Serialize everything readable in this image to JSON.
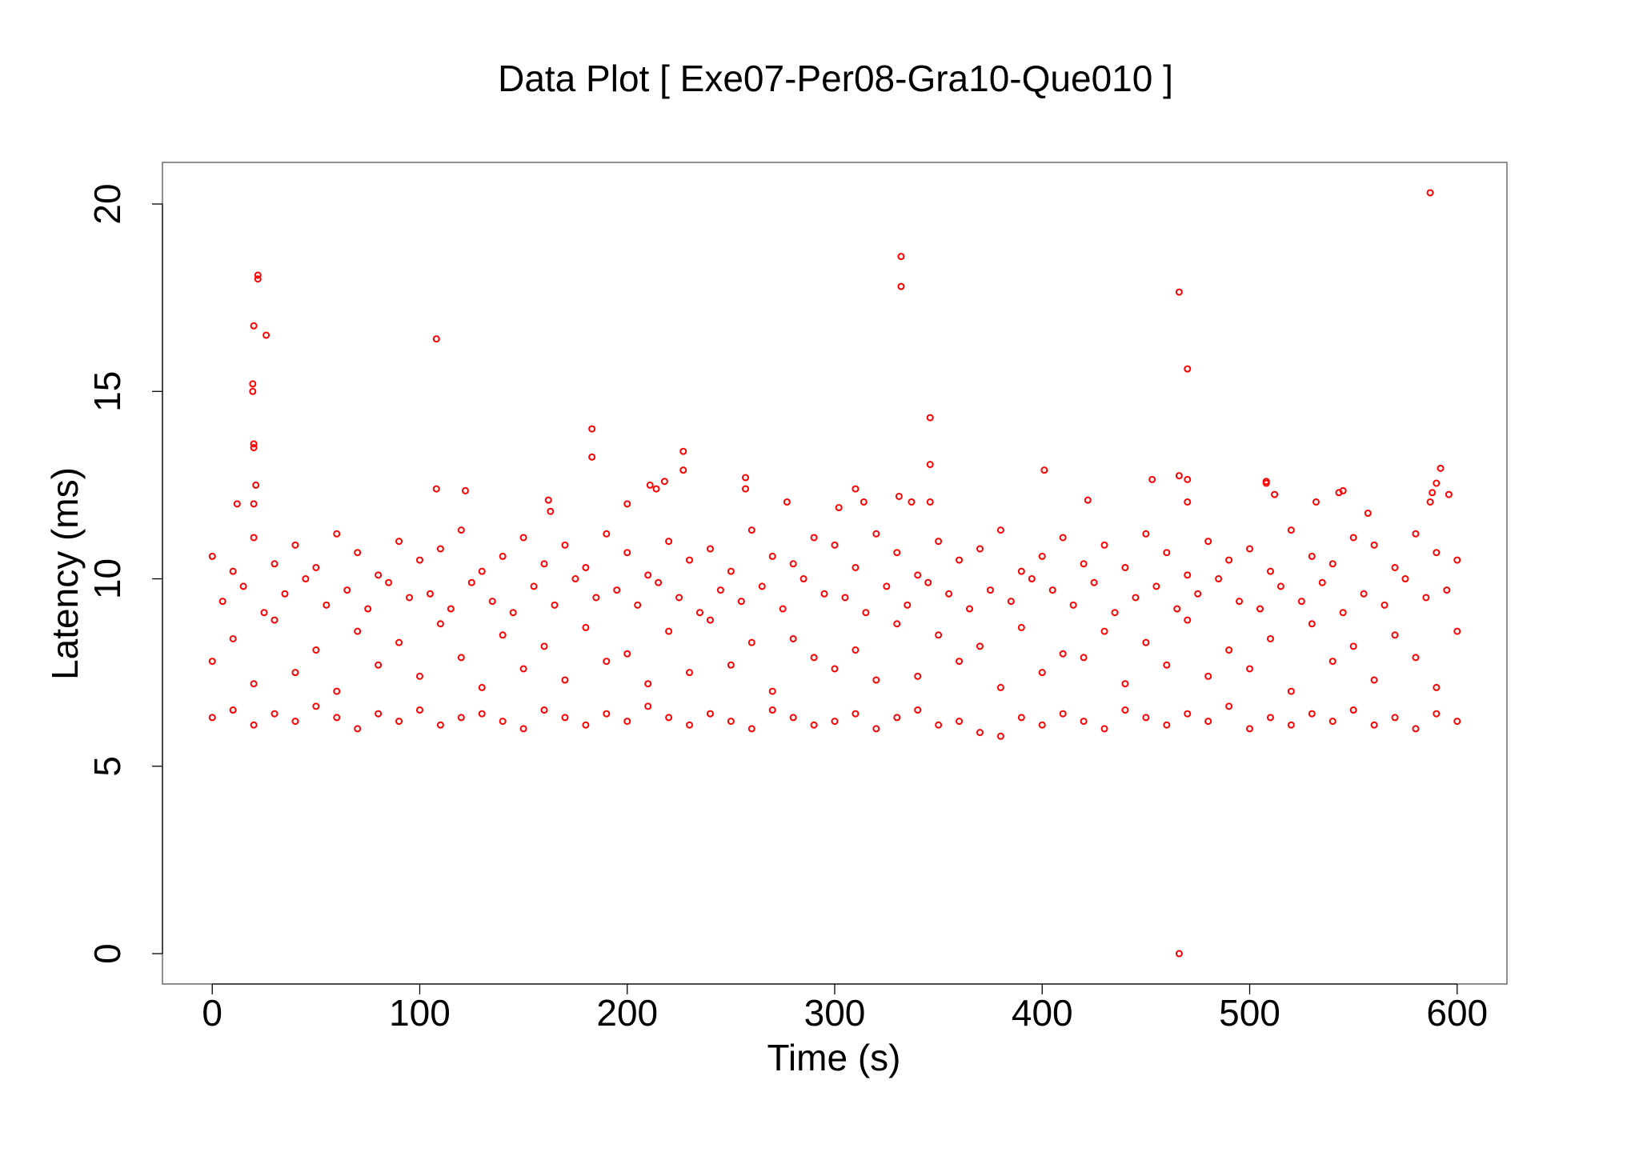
{
  "chart_data": {
    "type": "scatter",
    "title": "Data Plot [ Exe07-Per08-Gra10-Que010 ]",
    "x_label": "Time (s)",
    "y_label": "Latency (ms)",
    "color": "#ff0000",
    "xlim": [
      -24,
      624
    ],
    "ylim": [
      -0.81,
      21.11
    ],
    "xticks": [
      0,
      100,
      200,
      300,
      400,
      500,
      600
    ],
    "yticks": [
      0,
      5,
      10,
      15,
      20
    ],
    "x": [
      0,
      10,
      20,
      30,
      40,
      50,
      60,
      70,
      80,
      90,
      100,
      110,
      120,
      130,
      140,
      150,
      160,
      170,
      180,
      190,
      200,
      210,
      220,
      230,
      240,
      250,
      260,
      270,
      280,
      290,
      300,
      310,
      320,
      330,
      340,
      350,
      360,
      370,
      380,
      390,
      400,
      410,
      420,
      430,
      440,
      450,
      460,
      470,
      480,
      490,
      500,
      510,
      520,
      530,
      540,
      550,
      560,
      570,
      580,
      590,
      600,
      0,
      10,
      20,
      30,
      40,
      50,
      60,
      70,
      80,
      90,
      100,
      110,
      120,
      130,
      140,
      150,
      160,
      170,
      180,
      190,
      200,
      210,
      220,
      230,
      240,
      250,
      260,
      270,
      280,
      290,
      300,
      310,
      320,
      330,
      340,
      350,
      360,
      370,
      380,
      390,
      400,
      410,
      420,
      430,
      440,
      450,
      460,
      470,
      480,
      490,
      500,
      510,
      520,
      530,
      540,
      550,
      560,
      570,
      580,
      590,
      600,
      0,
      10,
      20,
      30,
      40,
      50,
      60,
      70,
      80,
      90,
      100,
      110,
      120,
      130,
      140,
      150,
      160,
      170,
      180,
      190,
      200,
      210,
      220,
      230,
      240,
      250,
      260,
      270,
      280,
      290,
      300,
      310,
      320,
      330,
      340,
      350,
      360,
      370,
      380,
      390,
      400,
      410,
      420,
      430,
      440,
      450,
      460,
      470,
      480,
      490,
      500,
      510,
      520,
      530,
      540,
      550,
      560,
      570,
      580,
      590,
      600,
      5,
      15,
      25,
      35,
      45,
      55,
      65,
      75,
      85,
      95,
      105,
      115,
      125,
      135,
      145,
      155,
      165,
      175,
      185,
      195,
      205,
      215,
      225,
      235,
      245,
      255,
      265,
      275,
      285,
      295,
      305,
      315,
      325,
      335,
      345,
      355,
      365,
      375,
      385,
      395,
      405,
      415,
      425,
      435,
      445,
      455,
      465,
      475,
      485,
      495,
      505,
      515,
      525,
      535,
      545,
      555,
      565,
      575,
      585,
      595,
      20,
      22,
      22,
      26,
      19.5,
      19.5,
      20,
      20,
      21,
      20,
      12,
      108,
      108,
      122,
      183,
      183,
      162,
      163,
      200,
      211,
      214,
      218,
      227,
      227,
      257,
      257,
      277,
      302,
      310,
      314,
      332,
      332,
      331,
      337,
      346,
      346,
      346,
      401,
      422,
      453,
      466,
      470,
      466,
      470,
      470,
      466,
      508,
      508,
      512,
      532,
      543,
      545,
      557,
      587,
      590,
      592,
      588,
      596,
      587
    ],
    "y": [
      6.3,
      6.5,
      6.1,
      6.4,
      6.2,
      6.6,
      6.3,
      6.0,
      6.4,
      6.2,
      6.5,
      6.1,
      6.3,
      6.4,
      6.2,
      6.0,
      6.5,
      6.3,
      6.1,
      6.4,
      6.2,
      6.6,
      6.3,
      6.1,
      6.4,
      6.2,
      6.0,
      6.5,
      6.3,
      6.1,
      6.2,
      6.4,
      6.0,
      6.3,
      6.5,
      6.1,
      6.2,
      5.9,
      5.8,
      6.3,
      6.1,
      6.4,
      6.2,
      6.0,
      6.5,
      6.3,
      6.1,
      6.4,
      6.2,
      6.6,
      6.0,
      6.3,
      6.1,
      6.4,
      6.2,
      6.5,
      6.1,
      6.3,
      6.0,
      6.4,
      6.2,
      7.8,
      8.4,
      7.2,
      8.9,
      7.5,
      8.1,
      7.0,
      8.6,
      7.7,
      8.3,
      7.4,
      8.8,
      7.9,
      7.1,
      8.5,
      7.6,
      8.2,
      7.3,
      8.7,
      7.8,
      8.0,
      7.2,
      8.6,
      7.5,
      8.9,
      7.7,
      8.3,
      7.0,
      8.4,
      7.9,
      7.6,
      8.1,
      7.3,
      8.8,
      7.4,
      8.5,
      7.8,
      8.2,
      7.1,
      8.7,
      7.5,
      8.0,
      7.9,
      8.6,
      7.2,
      8.3,
      7.7,
      8.9,
      7.4,
      8.1,
      7.6,
      8.4,
      7.0,
      8.8,
      7.8,
      8.2,
      7.3,
      8.5,
      7.9,
      7.1,
      8.6,
      10.6,
      10.2,
      11.1,
      10.4,
      10.9,
      10.3,
      11.2,
      10.7,
      10.1,
      11.0,
      10.5,
      10.8,
      11.3,
      10.2,
      10.6,
      11.1,
      10.4,
      10.9,
      10.3,
      11.2,
      10.7,
      10.1,
      11.0,
      10.5,
      10.8,
      10.2,
      11.3,
      10.6,
      10.4,
      11.1,
      10.9,
      10.3,
      11.2,
      10.7,
      10.1,
      11.0,
      10.5,
      10.8,
      11.3,
      10.2,
      10.6,
      11.1,
      10.4,
      10.9,
      10.3,
      11.2,
      10.7,
      10.1,
      11.0,
      10.5,
      10.8,
      10.2,
      11.3,
      10.6,
      10.4,
      11.1,
      10.9,
      10.3,
      11.2,
      10.7,
      10.5,
      9.4,
      9.8,
      9.1,
      9.6,
      10.0,
      9.3,
      9.7,
      9.2,
      9.9,
      9.5,
      9.6,
      9.2,
      9.9,
      9.4,
      9.1,
      9.8,
      9.3,
      10.0,
      9.5,
      9.7,
      9.3,
      9.9,
      9.5,
      9.1,
      9.7,
      9.4,
      9.8,
      9.2,
      10.0,
      9.6,
      9.5,
      9.1,
      9.8,
      9.3,
      9.9,
      9.6,
      9.2,
      9.7,
      9.4,
      10.0,
      9.7,
      9.3,
      9.9,
      9.1,
      9.5,
      9.8,
      9.2,
      9.6,
      10.0,
      9.4,
      9.2,
      9.8,
      9.4,
      9.9,
      9.1,
      9.6,
      9.3,
      10.0,
      9.5,
      9.7,
      16.75,
      18.1,
      18.0,
      16.5,
      15.2,
      15.0,
      13.6,
      13.5,
      12.5,
      12.0,
      12.0,
      16.4,
      12.4,
      12.35,
      14.0,
      13.25,
      12.1,
      11.8,
      12.0,
      12.5,
      12.4,
      12.6,
      13.4,
      12.9,
      12.7,
      12.4,
      12.05,
      11.9,
      12.4,
      12.05,
      18.6,
      17.8,
      12.2,
      12.05,
      14.3,
      13.05,
      12.05,
      12.9,
      12.1,
      12.65,
      17.65,
      15.6,
      12.75,
      12.65,
      12.05,
      0,
      12.6,
      12.55,
      12.25,
      12.05,
      12.3,
      12.35,
      11.75,
      20.3,
      12.55,
      12.95,
      12.3,
      12.25,
      12.05
    ]
  }
}
